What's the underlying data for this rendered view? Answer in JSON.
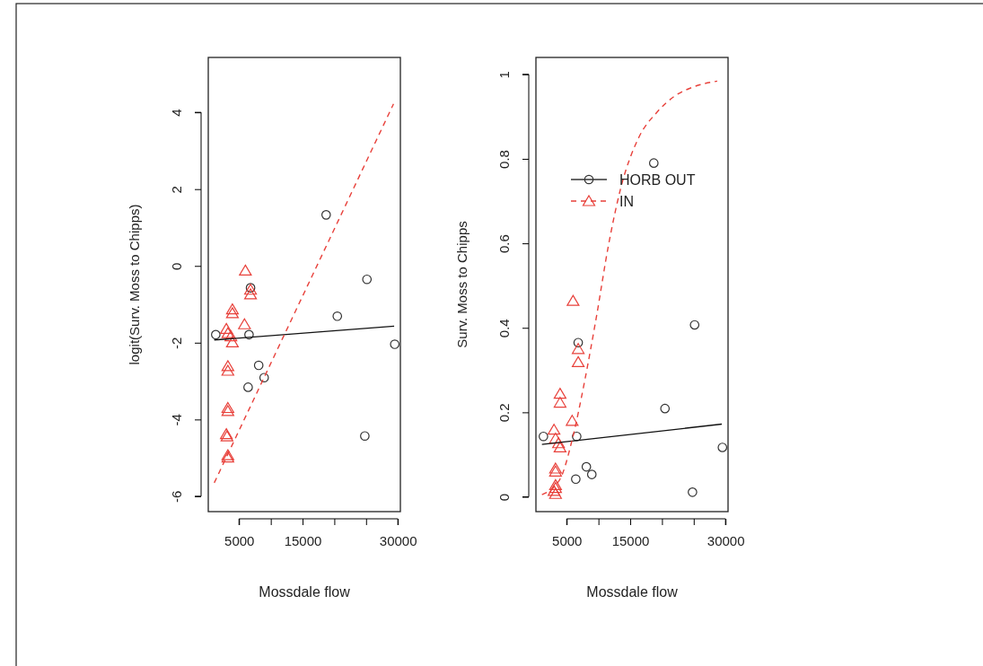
{
  "chart_data": [
    {
      "type": "scatter",
      "xlabel": "Mossdale flow",
      "ylabel": "logit(Surv. Moss to Chipps)",
      "xlim": [
        155,
        30400
      ],
      "ylim": [
        -6.4,
        5.43
      ],
      "xticks": [
        5000,
        {
          "value": 10000,
          "label": null
        },
        15000,
        {
          "value": 20000,
          "label": null
        },
        {
          "value": 25000,
          "label": null
        },
        30000
      ],
      "yticks": [
        -6,
        -4,
        -2,
        0,
        2,
        4
      ],
      "grid": false,
      "legend": false,
      "series": [
        {
          "type": "scatter",
          "marker": "circle",
          "color": "#333333",
          "x": [
            1335,
            6571,
            6810,
            8094,
            8951,
            6428,
            18710,
            20470,
            25135,
            24800,
            29514
          ],
          "values": [
            -1.79,
            -1.79,
            -0.57,
            -2.59,
            -2.91,
            -3.16,
            1.33,
            -1.31,
            -0.35,
            -4.43,
            -2.04
          ]
        },
        {
          "type": "scatter",
          "marker": "triangle",
          "color": "#e8403a",
          "x": [
            6000,
            6810,
            6810,
            3953,
            3953,
            5857,
            3000,
            3240,
            3715,
            3953,
            3240,
            3240,
            3240,
            3240,
            3000,
            3100,
            3240,
            3240
          ],
          "values": [
            -0.12,
            -0.62,
            -0.74,
            -1.13,
            -1.23,
            -1.52,
            -1.64,
            -1.75,
            -1.83,
            -1.99,
            -2.61,
            -2.73,
            -3.7,
            -3.78,
            -4.38,
            -4.44,
            -4.93,
            -4.99
          ]
        },
        {
          "type": "line",
          "line_style": "solid",
          "color": "#111111",
          "x": [
            1100,
            29420
          ],
          "values": [
            -1.93,
            -1.57
          ]
        },
        {
          "type": "line",
          "line_style": "dashed",
          "color": "#e8403a",
          "x": [
            1100,
            29320
          ],
          "values": [
            -5.65,
            4.22
          ]
        }
      ]
    },
    {
      "type": "scatter",
      "xlabel": "Mossdale flow",
      "ylabel": "Surv. Moss to Chipps",
      "xlim": [
        155,
        30400
      ],
      "ylim": [
        -0.035,
        1.04
      ],
      "xticks": [
        5000,
        {
          "value": 10000,
          "label": null
        },
        15000,
        {
          "value": 20000,
          "label": null
        },
        {
          "value": 25000,
          "label": null
        },
        30000
      ],
      "yticks": [
        0,
        0.2,
        0.4,
        0.6,
        0.8,
        1.0
      ],
      "grid": false,
      "legend": "top right",
      "series": [
        {
          "type": "scatter",
          "name": "HORB OUT",
          "marker": "circle",
          "color": "#333333",
          "x": [
            1335,
            6571,
            6810,
            8094,
            8951,
            6428,
            18710,
            20470,
            25135,
            24800,
            29514
          ],
          "values": [
            0.143,
            0.143,
            0.365,
            0.071,
            0.053,
            0.042,
            0.79,
            0.209,
            0.407,
            0.011,
            0.117
          ]
        },
        {
          "type": "scatter",
          "name": "IN",
          "marker": "triangle",
          "color": "#e8403a",
          "x": [
            6000,
            6810,
            6810,
            3953,
            3953,
            5857,
            3000,
            3240,
            3715,
            3953,
            3240,
            3240,
            3240,
            3240,
            3000,
            3240
          ],
          "values": [
            0.464,
            0.35,
            0.319,
            0.244,
            0.223,
            0.18,
            0.159,
            0.138,
            0.127,
            0.117,
            0.067,
            0.06,
            0.028,
            0.021,
            0.014,
            0.007
          ]
        },
        {
          "type": "line",
          "line_style": "solid",
          "color": "#111111",
          "x": [
            1100,
            29420
          ],
          "values": [
            0.124,
            0.172
          ]
        },
        {
          "type": "line",
          "line_style": "dashed",
          "color": "#e8403a",
          "x": [
            1100,
            3953,
            5857,
            7760,
            9665,
            11570,
            13476,
            16330,
            19186,
            22040,
            24900,
            28700
          ],
          "values": [
            0.005,
            0.042,
            0.135,
            0.269,
            0.425,
            0.595,
            0.729,
            0.85,
            0.91,
            0.949,
            0.97,
            0.984
          ]
        }
      ]
    }
  ]
}
